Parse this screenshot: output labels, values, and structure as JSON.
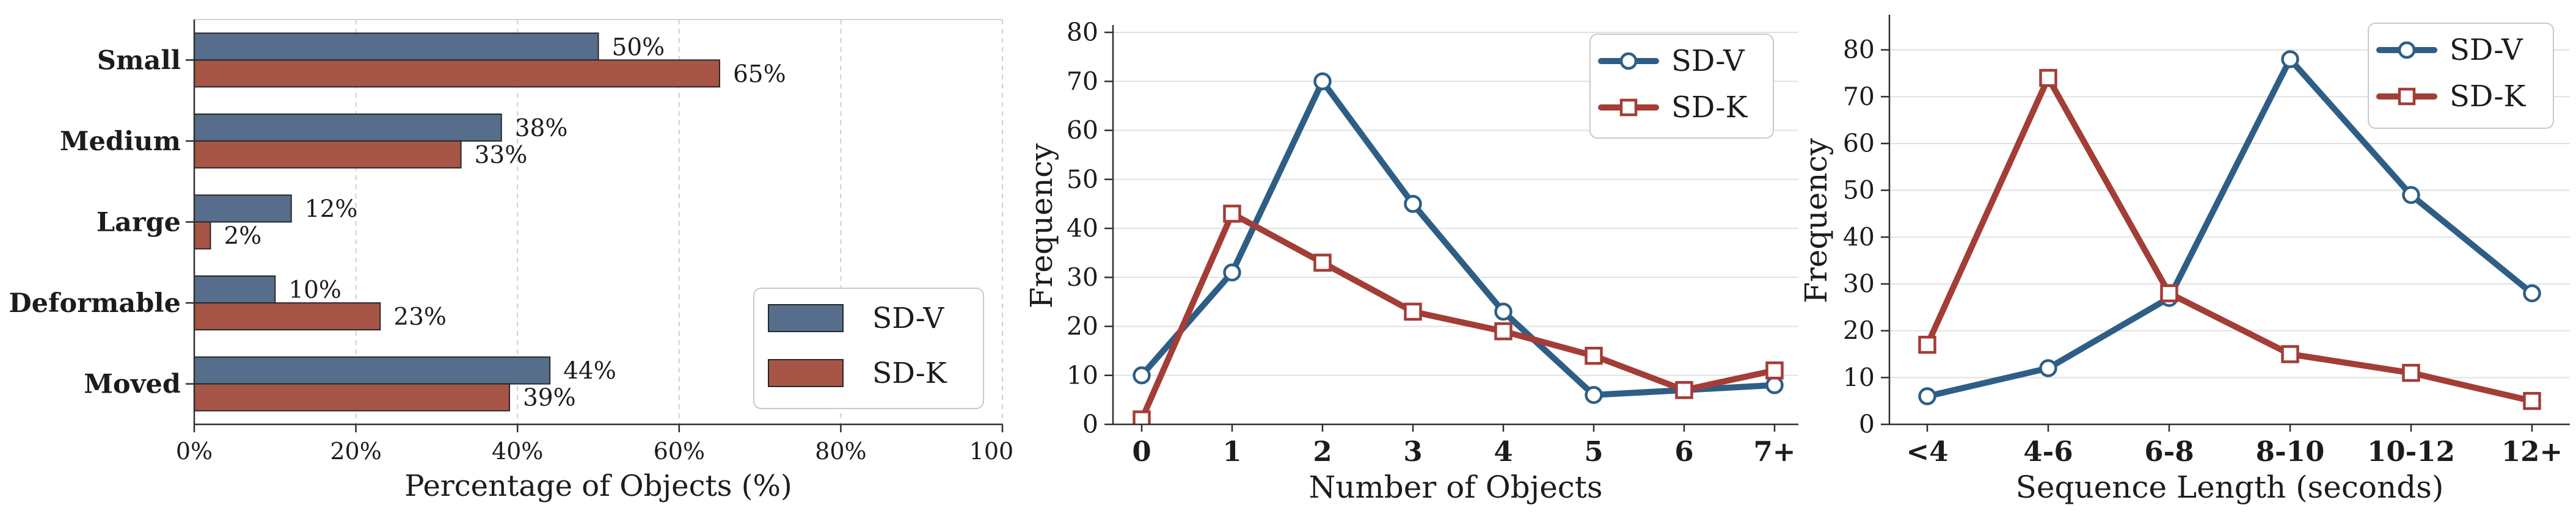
{
  "figure": {
    "background": "#ffffff"
  },
  "colors": {
    "sdv_bar": "#566e8c",
    "sdk_bar": "#a75546",
    "sdv_line": "#2e5e86",
    "sdk_line": "#a33d36",
    "bar_edge": "#26282b",
    "spine_dark": "#2e2e2e",
    "spine_light": "#c6c6c6",
    "grid_dashed": "#cfcfcf",
    "grid_solid": "#e1e1e1",
    "legend_border": "#c9c9c9",
    "text": "#1c1c1c"
  },
  "legend": {
    "sdv_label": "SD-V",
    "sdk_label": "SD-K"
  },
  "chart_data": [
    {
      "type": "bar",
      "orientation": "horizontal",
      "categories": [
        "Small",
        "Medium",
        "Large",
        "Deformable",
        "Moved"
      ],
      "series": [
        {
          "name": "SD-V",
          "color": "#566e8c",
          "values": [
            50,
            38,
            12,
            10,
            44
          ],
          "labels": [
            "50%",
            "38%",
            "12%",
            "10%",
            "44%"
          ]
        },
        {
          "name": "SD-K",
          "color": "#a75546",
          "values": [
            65,
            33,
            2,
            23,
            39
          ],
          "labels": [
            "65%",
            "33%",
            "2%",
            "23%",
            "39%"
          ]
        }
      ],
      "xlabel": "Percentage of Objects (%)",
      "ylabel": "",
      "xlim": [
        0,
        100
      ],
      "xtick_values": [
        0,
        20,
        40,
        60,
        80,
        100
      ],
      "xtick_labels": [
        "0%",
        "20%",
        "40%",
        "60%",
        "80%",
        "100%"
      ],
      "grid": "vertical-dashed",
      "legend_position": "center-right"
    },
    {
      "type": "line",
      "categories": [
        "0",
        "1",
        "2",
        "3",
        "4",
        "5",
        "6",
        "7+"
      ],
      "series": [
        {
          "name": "SD-V",
          "marker": "circle",
          "color": "#2e5e86",
          "values": [
            10,
            31,
            70,
            45,
            23,
            6,
            7,
            8
          ]
        },
        {
          "name": "SD-K",
          "marker": "square",
          "color": "#a33d36",
          "values": [
            1,
            43,
            33,
            23,
            19,
            14,
            7,
            11
          ]
        }
      ],
      "xlabel": "Number of Objects",
      "ylabel": "Frequency",
      "ylim": [
        0,
        81
      ],
      "yticks": [
        0,
        10,
        20,
        30,
        40,
        50,
        60,
        70,
        80
      ],
      "grid": "horizontal",
      "legend_position": "top-right"
    },
    {
      "type": "line",
      "categories": [
        "<4",
        "4-6",
        "6-8",
        "8-10",
        "10-12",
        "12+"
      ],
      "series": [
        {
          "name": "SD-V",
          "marker": "circle",
          "color": "#2e5e86",
          "values": [
            6,
            12,
            27,
            78,
            49,
            28
          ]
        },
        {
          "name": "SD-K",
          "marker": "square",
          "color": "#a33d36",
          "values": [
            17,
            74,
            28,
            15,
            11,
            5
          ]
        }
      ],
      "xlabel": "Sequence Length (seconds)",
      "ylabel": "Frequency",
      "ylim": [
        0,
        87
      ],
      "yticks": [
        0,
        10,
        20,
        30,
        40,
        50,
        60,
        70,
        80
      ],
      "grid": "horizontal",
      "legend_position": "top-right"
    }
  ]
}
